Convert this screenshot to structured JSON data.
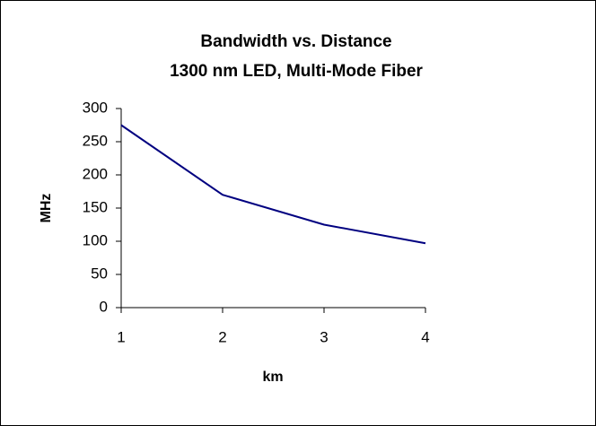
{
  "chart_data": {
    "type": "line",
    "title": "Bandwidth vs. Distance",
    "subtitle": "1300 nm LED, Multi-Mode Fiber",
    "x_label": "km",
    "y_label": "MHz",
    "x": [
      1,
      2,
      3,
      4
    ],
    "values": [
      275,
      170,
      125,
      97
    ],
    "color": "#000080",
    "xlim": [
      1,
      4
    ],
    "xticks": [
      1,
      2,
      3,
      4
    ],
    "ylim": [
      0,
      300
    ],
    "yticks": [
      0,
      50,
      100,
      150,
      200,
      250,
      300
    ],
    "grid": false
  }
}
